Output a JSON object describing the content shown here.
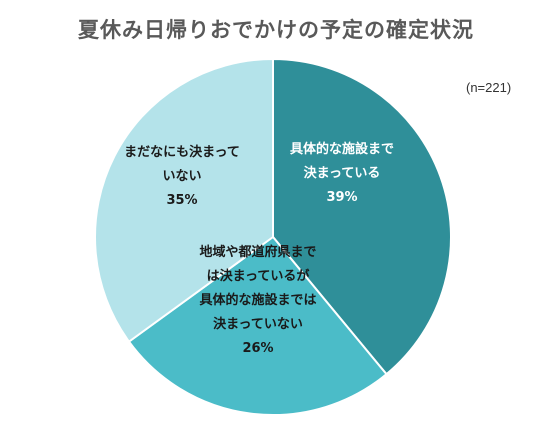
{
  "title": "夏休み日帰りおでかけの予定の確定状況",
  "note": "(n=221)",
  "chart_data": {
    "type": "pie",
    "start_angle": "12 o'clock",
    "direction": "clockwise",
    "slices": [
      {
        "label_lines": [
          "具体的な施設まで",
          "決まっている"
        ],
        "value": 39,
        "value_label": "39%",
        "color": "#2f8f99",
        "text_color": "#ffffff"
      },
      {
        "label_lines": [
          "地域や都道府県まで",
          "は決まっているが",
          "具体的な施設までは",
          "決まっていない"
        ],
        "value": 26,
        "value_label": "26%",
        "color": "#4bbcc8",
        "text_color": "#1a1a1a"
      },
      {
        "label_lines": [
          "まだなにも決まって",
          "いない"
        ],
        "value": 35,
        "value_label": "35%",
        "color": "#b4e3ea",
        "text_color": "#1a1a1a"
      }
    ]
  }
}
